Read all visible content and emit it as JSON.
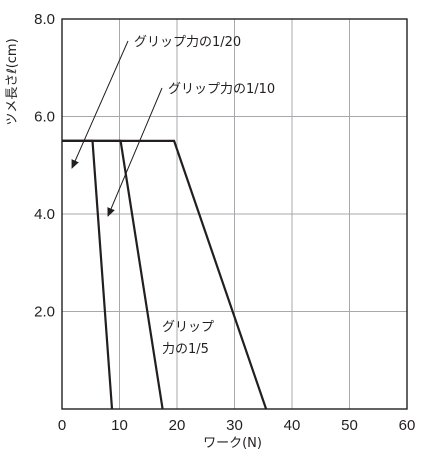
{
  "chart_data": {
    "type": "line",
    "title": "",
    "xlabel": "ワーク(N)",
    "ylabel": "ツメ長さℓ(cm)",
    "xlim": [
      0,
      60
    ],
    "ylim": [
      0,
      8
    ],
    "grid": true,
    "x_ticks": [
      "0",
      "10",
      "20",
      "30",
      "40",
      "50",
      "60"
    ],
    "y_ticks": [
      "2.0",
      "4.0",
      "6.0",
      "8.0"
    ],
    "series": [
      {
        "name": "グリップ力の1/20",
        "x": [
          0,
          5.3,
          8.7,
          8.7
        ],
        "y": [
          5.5,
          5.5,
          0,
          0
        ]
      },
      {
        "name": "グリップ力の1/10",
        "x": [
          0,
          10.2,
          17.5
        ],
        "y": [
          5.5,
          5.5,
          0
        ]
      },
      {
        "name": "グリップ力の1/5",
        "x": [
          0,
          19.5,
          35.5
        ],
        "y": [
          5.5,
          5.5,
          0
        ]
      }
    ],
    "annotations": [
      {
        "id": "a20",
        "text": "グリップ力の1/20"
      },
      {
        "id": "a10",
        "text": "グリップ力の1/10"
      },
      {
        "id": "a5",
        "line1": "グリップ",
        "line2": "力の1/5"
      }
    ]
  }
}
